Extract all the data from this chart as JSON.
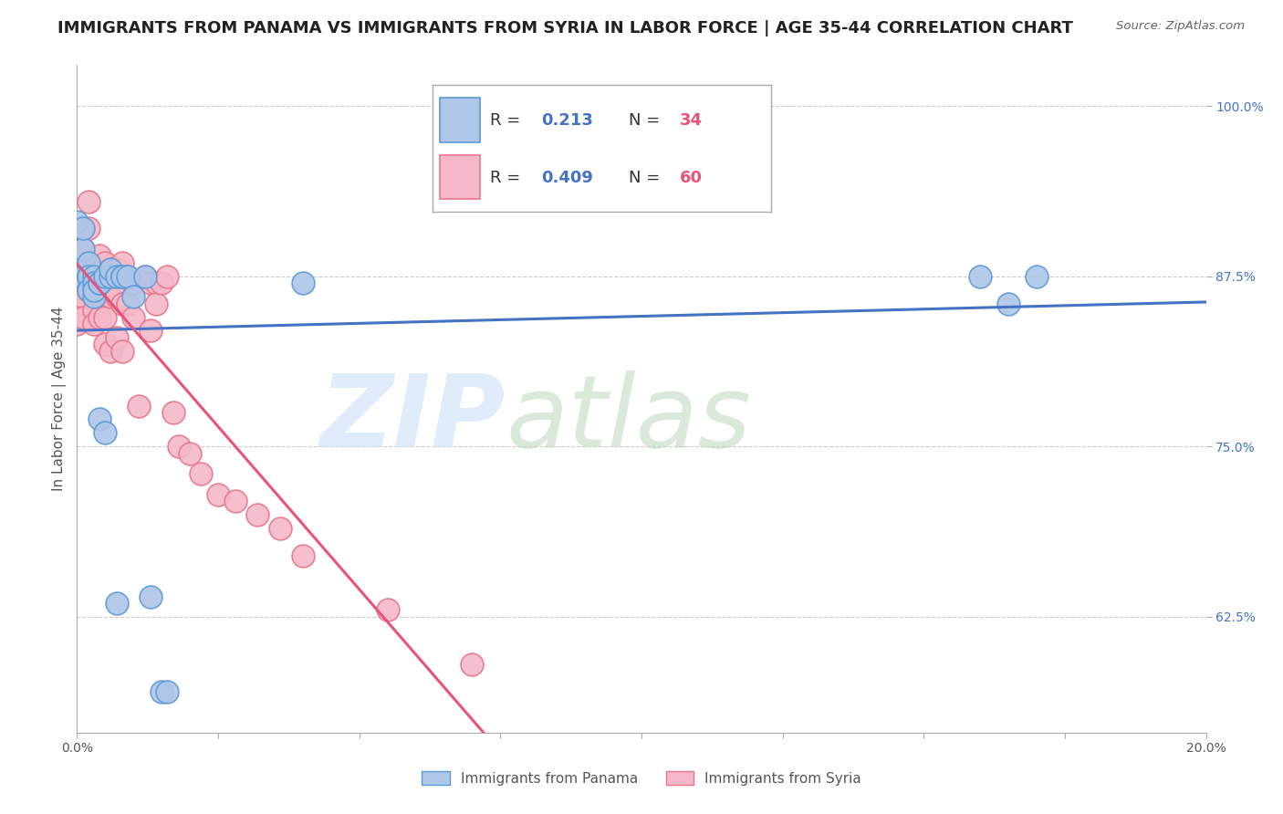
{
  "title": "IMMIGRANTS FROM PANAMA VS IMMIGRANTS FROM SYRIA IN LABOR FORCE | AGE 35-44 CORRELATION CHART",
  "source": "Source: ZipAtlas.com",
  "ylabel": "In Labor Force | Age 35-44",
  "xlim": [
    0.0,
    0.2
  ],
  "ylim": [
    0.54,
    1.03
  ],
  "xticks": [
    0.0,
    0.025,
    0.05,
    0.075,
    0.1,
    0.125,
    0.15,
    0.175,
    0.2
  ],
  "yticks": [
    0.625,
    0.75,
    0.875,
    1.0
  ],
  "yticklabels": [
    "62.5%",
    "75.0%",
    "87.5%",
    "100.0%"
  ],
  "panama_color": "#aec6e8",
  "syria_color": "#f5b8c8",
  "panama_edge": "#5b9bd5",
  "syria_edge": "#e8758a",
  "panama_R": 0.213,
  "panama_N": 34,
  "syria_R": 0.409,
  "syria_N": 60,
  "panama_line_color": "#4472C4",
  "syria_line_color": "#E8537A",
  "panama_x": [
    0.0,
    0.0,
    0.001,
    0.001,
    0.001,
    0.002,
    0.002,
    0.002,
    0.002,
    0.003,
    0.003,
    0.003,
    0.003,
    0.004,
    0.004,
    0.004,
    0.005,
    0.005,
    0.006,
    0.006,
    0.007,
    0.007,
    0.008,
    0.008,
    0.009,
    0.01,
    0.012,
    0.013,
    0.015,
    0.016,
    0.04,
    0.16,
    0.165,
    0.17
  ],
  "panama_y": [
    0.88,
    0.915,
    0.875,
    0.895,
    0.91,
    0.875,
    0.885,
    0.875,
    0.865,
    0.875,
    0.87,
    0.86,
    0.865,
    0.87,
    0.87,
    0.77,
    0.875,
    0.76,
    0.875,
    0.88,
    0.875,
    0.635,
    0.875,
    0.875,
    0.875,
    0.86,
    0.875,
    0.64,
    0.57,
    0.57,
    0.87,
    0.875,
    0.855,
    0.875
  ],
  "syria_x": [
    0.0,
    0.0,
    0.0,
    0.0,
    0.0,
    0.001,
    0.001,
    0.001,
    0.001,
    0.001,
    0.002,
    0.002,
    0.002,
    0.002,
    0.002,
    0.003,
    0.003,
    0.003,
    0.003,
    0.003,
    0.004,
    0.004,
    0.004,
    0.004,
    0.005,
    0.005,
    0.005,
    0.005,
    0.006,
    0.006,
    0.006,
    0.007,
    0.007,
    0.007,
    0.008,
    0.008,
    0.008,
    0.009,
    0.009,
    0.01,
    0.01,
    0.011,
    0.012,
    0.013,
    0.013,
    0.014,
    0.014,
    0.015,
    0.016,
    0.017,
    0.018,
    0.02,
    0.022,
    0.025,
    0.028,
    0.032,
    0.036,
    0.04,
    0.055,
    0.07
  ],
  "syria_y": [
    0.875,
    0.87,
    0.86,
    0.85,
    0.84,
    0.91,
    0.895,
    0.875,
    0.86,
    0.845,
    0.93,
    0.91,
    0.88,
    0.875,
    0.865,
    0.88,
    0.87,
    0.86,
    0.85,
    0.84,
    0.89,
    0.875,
    0.86,
    0.845,
    0.885,
    0.865,
    0.845,
    0.825,
    0.88,
    0.86,
    0.82,
    0.88,
    0.86,
    0.83,
    0.885,
    0.855,
    0.82,
    0.875,
    0.855,
    0.87,
    0.845,
    0.78,
    0.875,
    0.87,
    0.835,
    0.87,
    0.855,
    0.87,
    0.875,
    0.775,
    0.75,
    0.745,
    0.73,
    0.715,
    0.71,
    0.7,
    0.69,
    0.67,
    0.63,
    0.59
  ],
  "title_fontsize": 13,
  "axis_fontsize": 11,
  "tick_fontsize": 10,
  "legend_r_color_panama": "#4472C4",
  "legend_n_color_panama": "#E8537A",
  "legend_r_color_syria": "#E8537A",
  "legend_n_color_syria": "#E8537A"
}
